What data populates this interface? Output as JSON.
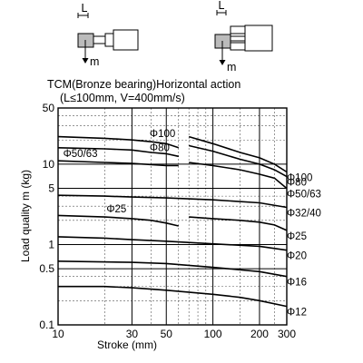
{
  "chart_data": {
    "type": "line",
    "title": "TCM(Bronze bearing)Horizontal action",
    "subtitle": "(L≤100mm, V=400mm/s)",
    "xlabel": "Stroke  (mm)",
    "ylabel": "Load quality  m  (kg)",
    "x_scale": "log",
    "y_scale": "log",
    "xlim": [
      10,
      300
    ],
    "ylim": [
      0.1,
      50
    ],
    "x_ticks": [
      "10",
      "30",
      "50",
      "100",
      "200",
      "300"
    ],
    "y_ticks": [
      "50",
      "10",
      "5",
      "1",
      "0.5",
      "0.1"
    ],
    "diagram_labels": {
      "L": "L",
      "m": "m"
    },
    "series": [
      {
        "name": "Φ100",
        "x": [
          10,
          20,
          30,
          40,
          50,
          60,
          70,
          100,
          150,
          200,
          250,
          300
        ],
        "y": [
          22,
          21,
          20,
          19,
          18,
          16,
          22,
          18,
          14,
          12,
          10,
          8
        ]
      },
      {
        "name": "Φ80",
        "x": [
          10,
          20,
          30,
          40,
          50,
          60,
          70,
          100,
          150,
          200,
          250,
          300
        ],
        "y": [
          16,
          15.5,
          15,
          14,
          13.5,
          12.5,
          17,
          14.5,
          11.5,
          10,
          8.5,
          7
        ]
      },
      {
        "name": "Φ50/63",
        "x": [
          10,
          20,
          30,
          50,
          60,
          70,
          100,
          150,
          200,
          250,
          300
        ],
        "y": [
          11,
          10.5,
          10.2,
          9.6,
          9.6,
          10.5,
          9.6,
          8.5,
          7.5,
          6.7,
          5
        ]
      },
      {
        "name": "Φ32/40",
        "x": [
          10,
          20,
          30,
          50,
          100,
          200,
          300
        ],
        "y": [
          4.1,
          4.0,
          3.9,
          3.8,
          3.6,
          3.3,
          2.9
        ]
      },
      {
        "name": "Φ25",
        "x": [
          10,
          20,
          30,
          40,
          50,
          60,
          70,
          100,
          150,
          200,
          250,
          300
        ],
        "y": [
          2.3,
          2.2,
          2.1,
          2.0,
          1.85,
          1.7,
          2.2,
          2.1,
          2.0,
          1.9,
          1.75,
          1.5
        ]
      },
      {
        "name": "Φ20",
        "x": [
          10,
          20,
          30,
          50,
          100,
          200,
          300
        ],
        "y": [
          1.25,
          1.2,
          1.15,
          1.1,
          1.02,
          0.95,
          0.85
        ]
      },
      {
        "name": "Φ16",
        "x": [
          10,
          30,
          50,
          100,
          200,
          300
        ],
        "y": [
          0.62,
          0.6,
          0.58,
          0.52,
          0.46,
          0.4
        ]
      },
      {
        "name": "Φ12",
        "x": [
          10,
          20,
          30,
          50,
          100,
          150,
          200,
          300
        ],
        "y": [
          0.3,
          0.3,
          0.29,
          0.27,
          0.24,
          0.22,
          0.2,
          0.17
        ]
      }
    ]
  }
}
